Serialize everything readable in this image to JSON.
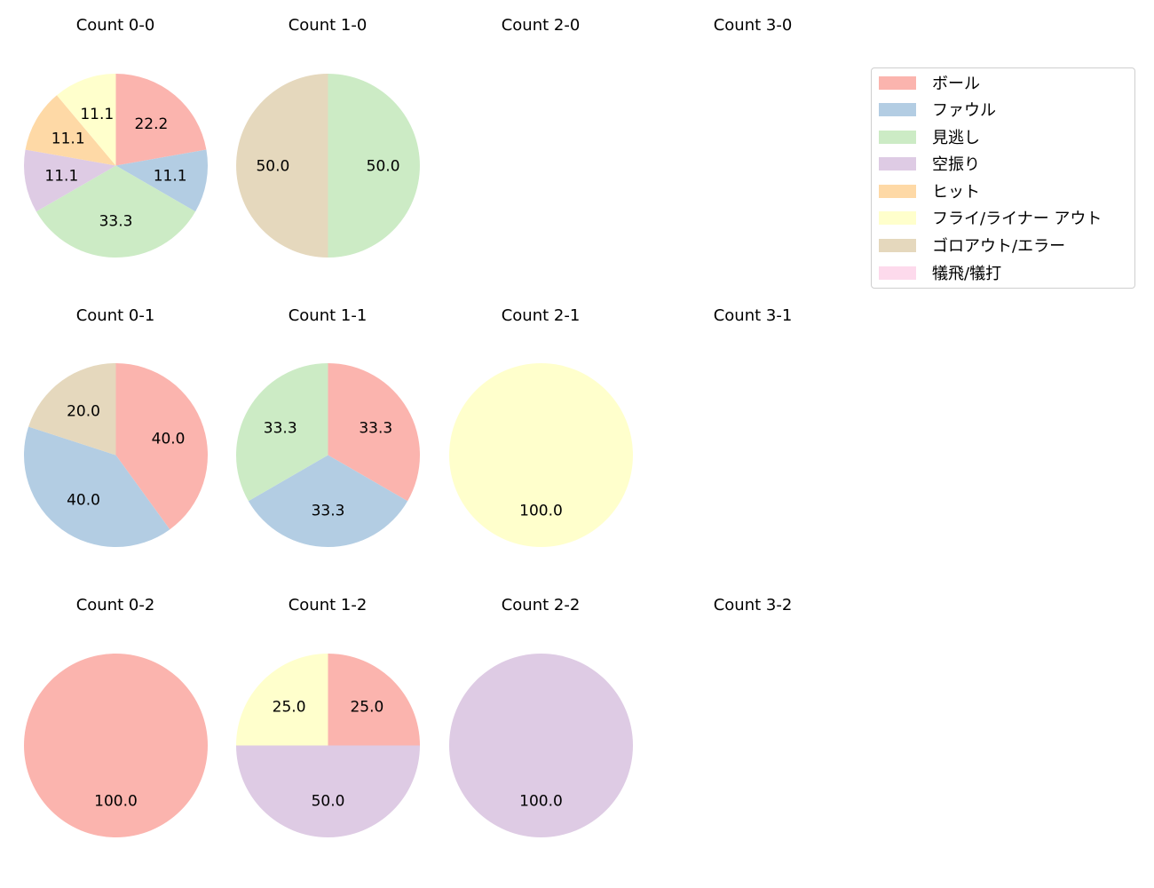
{
  "legend": {
    "items": [
      {
        "label": "ボール",
        "color": "#fbb4ae"
      },
      {
        "label": "ファウル",
        "color": "#b3cde3"
      },
      {
        "label": "見逃し",
        "color": "#ccebc5"
      },
      {
        "label": "空振り",
        "color": "#decbe4"
      },
      {
        "label": "ヒット",
        "color": "#fed9a6"
      },
      {
        "label": "フライ/ライナー アウト",
        "color": "#ffffcc"
      },
      {
        "label": "ゴロアウト/エラー",
        "color": "#e5d8bd"
      },
      {
        "label": "犠飛/犠打",
        "color": "#fddaec"
      }
    ]
  },
  "chart_data": {
    "type": "pie",
    "title": "",
    "categories": [
      "ボール",
      "ファウル",
      "見逃し",
      "空振り",
      "ヒット",
      "フライ/ライナー アウト",
      "ゴロアウト/エラー",
      "犠飛/犠打"
    ],
    "colors": [
      "#fbb4ae",
      "#b3cde3",
      "#ccebc5",
      "#decbe4",
      "#fed9a6",
      "#ffffcc",
      "#e5d8bd",
      "#fddaec"
    ],
    "start_angle": 90,
    "direction": "clockwise",
    "legend_position": "upper right",
    "panels": [
      {
        "title": "Count 0-0",
        "row": 0,
        "col": 0,
        "values": [
          22.2,
          11.1,
          33.3,
          11.1,
          11.1,
          11.1,
          0,
          0
        ]
      },
      {
        "title": "Count 1-0",
        "row": 0,
        "col": 1,
        "values": [
          0,
          0,
          50.0,
          0,
          0,
          0,
          50.0,
          0
        ]
      },
      {
        "title": "Count 2-0",
        "row": 0,
        "col": 2,
        "values": []
      },
      {
        "title": "Count 3-0",
        "row": 0,
        "col": 3,
        "values": []
      },
      {
        "title": "Count 0-1",
        "row": 1,
        "col": 0,
        "values": [
          40.0,
          40.0,
          0,
          0,
          0,
          0,
          20.0,
          0
        ]
      },
      {
        "title": "Count 1-1",
        "row": 1,
        "col": 1,
        "values": [
          33.3,
          33.3,
          33.3,
          0,
          0,
          0,
          0,
          0
        ]
      },
      {
        "title": "Count 2-1",
        "row": 1,
        "col": 2,
        "values": [
          0,
          0,
          0,
          0,
          0,
          100.0,
          0,
          0
        ]
      },
      {
        "title": "Count 3-1",
        "row": 1,
        "col": 3,
        "values": []
      },
      {
        "title": "Count 0-2",
        "row": 2,
        "col": 0,
        "values": [
          100.0,
          0,
          0,
          0,
          0,
          0,
          0,
          0
        ]
      },
      {
        "title": "Count 1-2",
        "row": 2,
        "col": 1,
        "values": [
          25.0,
          0,
          0,
          50.0,
          0,
          25.0,
          0,
          0
        ]
      },
      {
        "title": "Count 2-2",
        "row": 2,
        "col": 2,
        "values": [
          0,
          0,
          0,
          100.0,
          0,
          0,
          0,
          0
        ]
      },
      {
        "title": "Count 3-2",
        "row": 2,
        "col": 3,
        "values": []
      }
    ]
  }
}
